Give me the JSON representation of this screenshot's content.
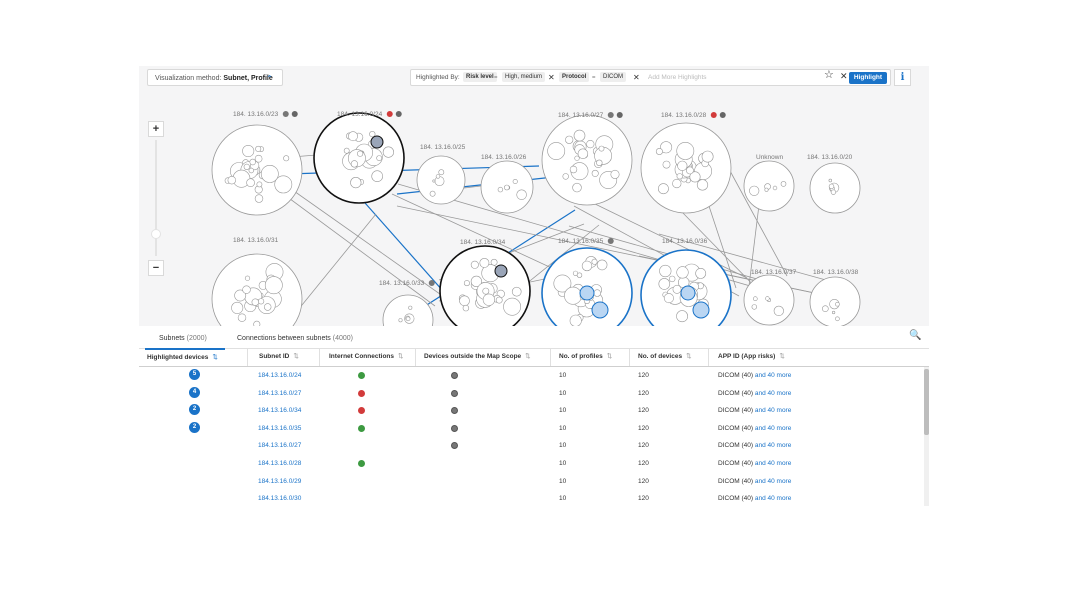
{
  "toolbar": {
    "visualization_prefix": "Visualization method:",
    "visualization_value": "Subnet, Profile",
    "highlight_label": "Highlighted By:",
    "chips": [
      {
        "key": "Risk level",
        "value": "High, medium"
      },
      {
        "key": "Protocol",
        "value": "DICOM"
      }
    ],
    "add_more_placeholder": "Add More Highlights",
    "highlight_button": "Highlight",
    "info_icon": "i"
  },
  "map": {
    "zoom_in": "+",
    "zoom_out": "−",
    "subnets": [
      {
        "label": "184. 13.16.0/23"
      },
      {
        "label": "184. 13.16.0/24"
      },
      {
        "label": "184. 13.16.0/25"
      },
      {
        "label": "184. 13.16.0/26"
      },
      {
        "label": "184. 13.16.0/27"
      },
      {
        "label": "184. 13.16.0/28"
      },
      {
        "label": "Unknown"
      },
      {
        "label": "184. 13.16.0/20"
      },
      {
        "label": "184. 13.16.0/31"
      },
      {
        "label": "184. 13.16.0/33"
      },
      {
        "label": "184. 13.16.0/34"
      },
      {
        "label": "184. 13.16.0/35"
      },
      {
        "label": "184. 13.16.0/36"
      },
      {
        "label": "184. 13.16.0/37"
      },
      {
        "label": "184. 13.16.0/38"
      }
    ]
  },
  "tabs": [
    {
      "label": "Subnets",
      "count": "(2000)"
    },
    {
      "label": "Connections between subnets",
      "count": "(4000)"
    }
  ],
  "columns": [
    "Highlighted devices",
    "Subnet ID",
    "Internet Connections",
    "Devices outside the Map Scope",
    "No. of profiles",
    "No. of devices",
    "APP ID (App risks)"
  ],
  "rows": [
    {
      "highlighted": "5",
      "subnet": "184.13.16.0/24",
      "internet": "green",
      "outside": true,
      "profiles": "10",
      "devices": "120",
      "app": "DICOM (40)",
      "more": "and 40 more"
    },
    {
      "highlighted": "4",
      "subnet": "184.13.16.0/27",
      "internet": "red",
      "outside": true,
      "profiles": "10",
      "devices": "120",
      "app": "DICOM (40)",
      "more": "and 40 more"
    },
    {
      "highlighted": "2",
      "subnet": "184.13.16.0/34",
      "internet": "red",
      "outside": true,
      "profiles": "10",
      "devices": "120",
      "app": "DICOM (40)",
      "more": "and 40 more"
    },
    {
      "highlighted": "2",
      "subnet": "184.13.16.0/35",
      "internet": "green",
      "outside": true,
      "profiles": "10",
      "devices": "120",
      "app": "DICOM (40)",
      "more": "and 40 more"
    },
    {
      "highlighted": "",
      "subnet": "184.13.16.0/27",
      "internet": "",
      "outside": true,
      "profiles": "10",
      "devices": "120",
      "app": "DICOM (40)",
      "more": "and 40 more"
    },
    {
      "highlighted": "",
      "subnet": "184.13.16.0/28",
      "internet": "green",
      "outside": false,
      "profiles": "10",
      "devices": "120",
      "app": "DICOM (40)",
      "more": "and 40 more"
    },
    {
      "highlighted": "",
      "subnet": "184.13.16.0/29",
      "internet": "",
      "outside": false,
      "profiles": "10",
      "devices": "120",
      "app": "DICOM (40)",
      "more": "and 40 more"
    },
    {
      "highlighted": "",
      "subnet": "184.13.16.0/30",
      "internet": "",
      "outside": false,
      "profiles": "10",
      "devices": "120",
      "app": "DICOM (40)",
      "more": "and 40 more"
    }
  ],
  "colors": {
    "accent": "#1a73c8",
    "ok": "#3d9a41",
    "risk": "#d23b3b"
  }
}
